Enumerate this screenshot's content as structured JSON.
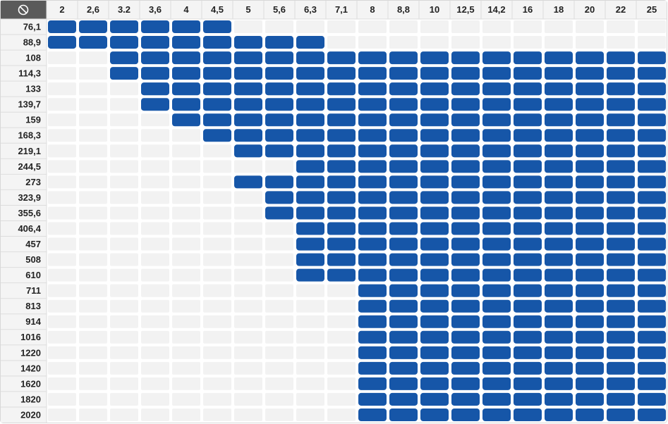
{
  "table": {
    "columns": [
      "2",
      "2,6",
      "3.2",
      "3,6",
      "4",
      "4,5",
      "5",
      "5,6",
      "6,3",
      "7,1",
      "8",
      "8,8",
      "10",
      "12,5",
      "14,2",
      "16",
      "18",
      "20",
      "22",
      "25"
    ],
    "rows": [
      {
        "label": "76,1",
        "cells": [
          1,
          1,
          1,
          1,
          1,
          1,
          0,
          0,
          0,
          0,
          0,
          0,
          0,
          0,
          0,
          0,
          0,
          0,
          0,
          0
        ]
      },
      {
        "label": "88,9",
        "cells": [
          1,
          1,
          1,
          1,
          1,
          1,
          1,
          1,
          1,
          0,
          0,
          0,
          0,
          0,
          0,
          0,
          0,
          0,
          0,
          0
        ]
      },
      {
        "label": "108",
        "cells": [
          0,
          0,
          1,
          1,
          1,
          1,
          1,
          1,
          1,
          1,
          1,
          1,
          1,
          1,
          1,
          1,
          1,
          1,
          1,
          1
        ]
      },
      {
        "label": "114,3",
        "cells": [
          0,
          0,
          1,
          1,
          1,
          1,
          1,
          1,
          1,
          1,
          1,
          1,
          1,
          1,
          1,
          1,
          1,
          1,
          1,
          1
        ]
      },
      {
        "label": "133",
        "cells": [
          0,
          0,
          0,
          1,
          1,
          1,
          1,
          1,
          1,
          1,
          1,
          1,
          1,
          1,
          1,
          1,
          1,
          1,
          1,
          1
        ]
      },
      {
        "label": "139,7",
        "cells": [
          0,
          0,
          0,
          1,
          1,
          1,
          1,
          1,
          1,
          1,
          1,
          1,
          1,
          1,
          1,
          1,
          1,
          1,
          1,
          1
        ]
      },
      {
        "label": "159",
        "cells": [
          0,
          0,
          0,
          0,
          1,
          1,
          1,
          1,
          1,
          1,
          1,
          1,
          1,
          1,
          1,
          1,
          1,
          1,
          1,
          1
        ]
      },
      {
        "label": "168,3",
        "cells": [
          0,
          0,
          0,
          0,
          0,
          1,
          1,
          1,
          1,
          1,
          1,
          1,
          1,
          1,
          1,
          1,
          1,
          1,
          1,
          1
        ]
      },
      {
        "label": "219,1",
        "cells": [
          0,
          0,
          0,
          0,
          0,
          0,
          1,
          1,
          1,
          1,
          1,
          1,
          1,
          1,
          1,
          1,
          1,
          1,
          1,
          1
        ]
      },
      {
        "label": "244,5",
        "cells": [
          0,
          0,
          0,
          0,
          0,
          0,
          0,
          0,
          1,
          1,
          1,
          1,
          1,
          1,
          1,
          1,
          1,
          1,
          1,
          1
        ]
      },
      {
        "label": "273",
        "cells": [
          0,
          0,
          0,
          0,
          0,
          0,
          1,
          1,
          1,
          1,
          1,
          1,
          1,
          1,
          1,
          1,
          1,
          1,
          1,
          1
        ]
      },
      {
        "label": "323,9",
        "cells": [
          0,
          0,
          0,
          0,
          0,
          0,
          0,
          1,
          1,
          1,
          1,
          1,
          1,
          1,
          1,
          1,
          1,
          1,
          1,
          1
        ]
      },
      {
        "label": "355,6",
        "cells": [
          0,
          0,
          0,
          0,
          0,
          0,
          0,
          1,
          1,
          1,
          1,
          1,
          1,
          1,
          1,
          1,
          1,
          1,
          1,
          1
        ]
      },
      {
        "label": "406,4",
        "cells": [
          0,
          0,
          0,
          0,
          0,
          0,
          0,
          0,
          1,
          1,
          1,
          1,
          1,
          1,
          1,
          1,
          1,
          1,
          1,
          1
        ]
      },
      {
        "label": "457",
        "cells": [
          0,
          0,
          0,
          0,
          0,
          0,
          0,
          0,
          1,
          1,
          1,
          1,
          1,
          1,
          1,
          1,
          1,
          1,
          1,
          1
        ]
      },
      {
        "label": "508",
        "cells": [
          0,
          0,
          0,
          0,
          0,
          0,
          0,
          0,
          1,
          1,
          1,
          1,
          1,
          1,
          1,
          1,
          1,
          1,
          1,
          1
        ]
      },
      {
        "label": "610",
        "cells": [
          0,
          0,
          0,
          0,
          0,
          0,
          0,
          0,
          1,
          1,
          1,
          1,
          1,
          1,
          1,
          1,
          1,
          1,
          1,
          1
        ]
      },
      {
        "label": "711",
        "cells": [
          0,
          0,
          0,
          0,
          0,
          0,
          0,
          0,
          0,
          0,
          1,
          1,
          1,
          1,
          1,
          1,
          1,
          1,
          1,
          1
        ]
      },
      {
        "label": "813",
        "cells": [
          0,
          0,
          0,
          0,
          0,
          0,
          0,
          0,
          0,
          0,
          1,
          1,
          1,
          1,
          1,
          1,
          1,
          1,
          1,
          1
        ]
      },
      {
        "label": "914",
        "cells": [
          0,
          0,
          0,
          0,
          0,
          0,
          0,
          0,
          0,
          0,
          1,
          1,
          1,
          1,
          1,
          1,
          1,
          1,
          1,
          1
        ]
      },
      {
        "label": "1016",
        "cells": [
          0,
          0,
          0,
          0,
          0,
          0,
          0,
          0,
          0,
          0,
          1,
          1,
          1,
          1,
          1,
          1,
          1,
          1,
          1,
          1
        ]
      },
      {
        "label": "1220",
        "cells": [
          0,
          0,
          0,
          0,
          0,
          0,
          0,
          0,
          0,
          0,
          1,
          1,
          1,
          1,
          1,
          1,
          1,
          1,
          1,
          1
        ]
      },
      {
        "label": "1420",
        "cells": [
          0,
          0,
          0,
          0,
          0,
          0,
          0,
          0,
          0,
          0,
          1,
          1,
          1,
          1,
          1,
          1,
          1,
          1,
          1,
          1
        ]
      },
      {
        "label": "1620",
        "cells": [
          0,
          0,
          0,
          0,
          0,
          0,
          0,
          0,
          0,
          0,
          1,
          1,
          1,
          1,
          1,
          1,
          1,
          1,
          1,
          1
        ]
      },
      {
        "label": "1820",
        "cells": [
          0,
          0,
          0,
          0,
          0,
          0,
          0,
          0,
          0,
          0,
          1,
          1,
          1,
          1,
          1,
          1,
          1,
          1,
          1,
          1
        ]
      },
      {
        "label": "2020",
        "cells": [
          0,
          0,
          0,
          0,
          0,
          0,
          0,
          0,
          0,
          0,
          1,
          1,
          1,
          1,
          1,
          1,
          1,
          1,
          1,
          1
        ]
      }
    ]
  }
}
